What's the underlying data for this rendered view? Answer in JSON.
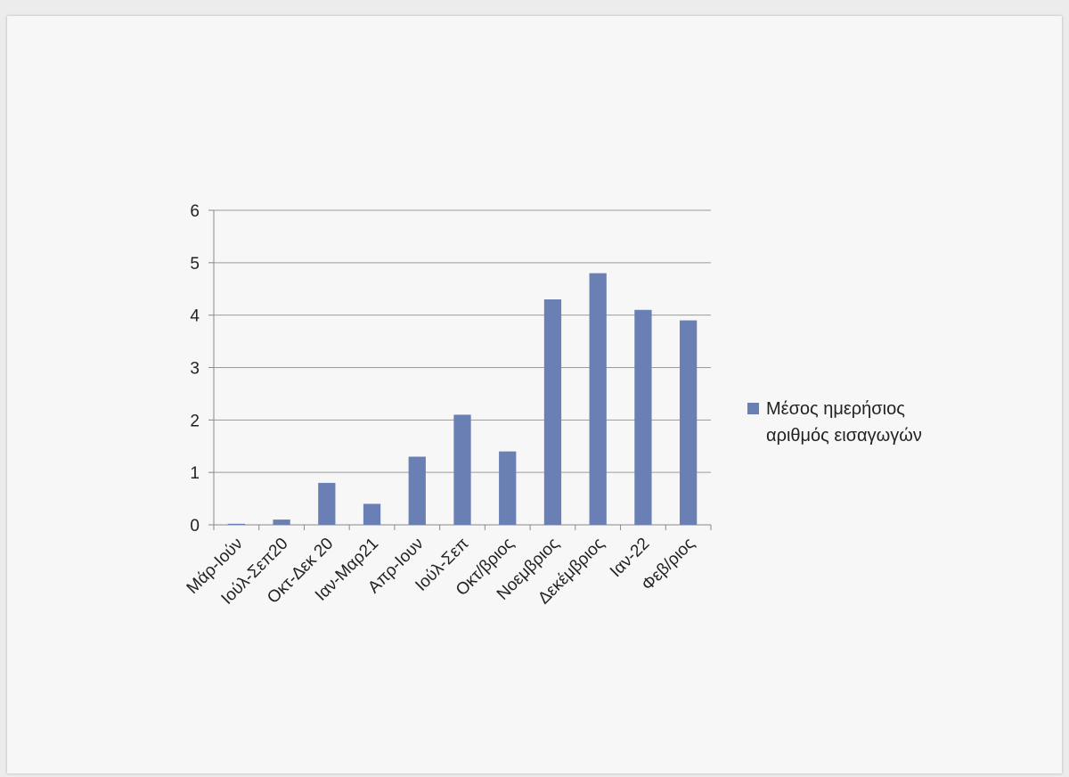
{
  "chart_data": {
    "type": "bar",
    "categories": [
      "Μάρ-Ιούν",
      "Ιούλ-Σεπ20",
      "Οκτ-Δεκ 20",
      "Ιαν-Μαρ21",
      "Απρ-Ιουν",
      "Ιούλ-Σεπ",
      "Οκτ/βριος",
      "Νοεμβριος",
      "Δεκέμβριος",
      "Ιαν-22",
      "Φεβ/ριος"
    ],
    "series": [
      {
        "name": "Μέσος ημερήσιος αριθμός εισαγωγών",
        "legend_lines": [
          "Μέσος ημερήσιος",
          "αριθμός εισαγωγών"
        ],
        "values": [
          0.02,
          0.1,
          0.8,
          0.4,
          1.3,
          2.1,
          1.4,
          4.3,
          4.8,
          4.1,
          3.9
        ],
        "color": "#6a7fb3"
      }
    ],
    "yticks": [
      0,
      1,
      2,
      3,
      4,
      5,
      6
    ],
    "ylim": [
      0,
      6
    ],
    "grid": true,
    "legend_position": "right",
    "title": "",
    "xlabel": "",
    "ylabel": ""
  }
}
